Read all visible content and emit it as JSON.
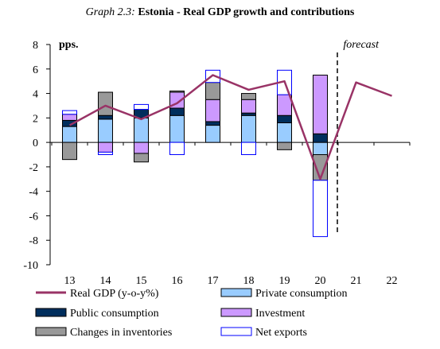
{
  "title": {
    "prefix": "Graph 2.3:",
    "main": "Estonia - Real GDP growth and contributions"
  },
  "chart_data": {
    "type": "bar",
    "categories": [
      "13",
      "14",
      "15",
      "16",
      "17",
      "18",
      "19",
      "20",
      "21",
      "22"
    ],
    "ylabel": "pps.",
    "ylim": [
      -10,
      8
    ],
    "yticks": [
      8,
      6,
      4,
      2,
      0,
      -2,
      -4,
      -6,
      -8,
      -10
    ],
    "forecast_label": "forecast",
    "forecast_divider_after": "20",
    "stacked_series": [
      {
        "name": "Private consumption",
        "color": "#99CCFF",
        "outline": "#000000",
        "values": [
          1.3,
          1.9,
          2.0,
          2.2,
          1.4,
          2.2,
          1.6,
          -1.0,
          null,
          null
        ]
      },
      {
        "name": "Public consumption",
        "color": "#002E5D",
        "outline": "#000000",
        "values": [
          0.5,
          0.3,
          0.7,
          0.6,
          0.3,
          0.2,
          0.6,
          0.7,
          null,
          null
        ]
      },
      {
        "name": "Investment",
        "color": "#CC99FF",
        "outline": "#000000",
        "values": [
          0.5,
          -0.8,
          -0.9,
          1.3,
          1.8,
          1.1,
          1.7,
          4.8,
          null,
          null
        ]
      },
      {
        "name": "Changes in inventories",
        "color": "#999999",
        "outline": "#000000",
        "values": [
          -1.4,
          1.9,
          -0.7,
          0.1,
          1.4,
          0.5,
          -0.6,
          -2.1,
          null,
          null
        ]
      },
      {
        "name": "Net exports",
        "color": "#FFFFFF",
        "outline": "#0000FF",
        "values": [
          0.3,
          -0.2,
          0.4,
          -1.0,
          1.0,
          -1.0,
          2.0,
          -4.6,
          null,
          null
        ]
      }
    ],
    "line_series": {
      "name": "Real GDP (y-o-y%)",
      "color": "#993366",
      "values": [
        1.4,
        3.0,
        1.9,
        3.2,
        5.5,
        4.3,
        5.0,
        -3.0,
        4.9,
        3.8
      ]
    },
    "legend": [
      {
        "label": "Real GDP (y-o-y%)",
        "kind": "line",
        "color": "#993366"
      },
      {
        "label": "Private consumption",
        "kind": "box",
        "color": "#99CCFF",
        "outline": "#000000"
      },
      {
        "label": "Public consumption",
        "kind": "box",
        "color": "#002E5D",
        "outline": "#000000"
      },
      {
        "label": "Investment",
        "kind": "box",
        "color": "#CC99FF",
        "outline": "#000000"
      },
      {
        "label": "Changes in inventories",
        "kind": "box",
        "color": "#999999",
        "outline": "#000000"
      },
      {
        "label": "Net exports",
        "kind": "box",
        "color": "#FFFFFF",
        "outline": "#0000FF"
      }
    ]
  }
}
